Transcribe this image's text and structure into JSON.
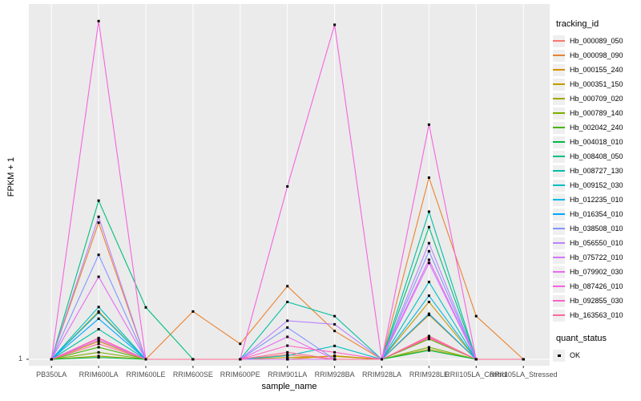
{
  "chart_data": {
    "type": "line",
    "title": "",
    "xlabel": "sample_name",
    "ylabel": "FPKM + 1",
    "y_axis": {
      "scale": "log",
      "ticks": [
        "1"
      ]
    },
    "grid": {
      "vertical_gridlines": true,
      "gridline_color": "#FFFFFF"
    },
    "legend": {
      "position": "right",
      "color_title": "tracking_id",
      "shape_title": "quant_status"
    },
    "marker": {
      "shape": "square",
      "color": "#000000",
      "legend_label": "OK"
    },
    "categories": [
      "PB350LA",
      "RRIM600LA",
      "RRIM600LE",
      "RRIM600SE",
      "RRIM600PE",
      "RRIM901LA",
      "RRIM928BA",
      "RRIM928LA",
      "RRIM928LE",
      "RRII105LA_Control",
      "RRII105LA_Stressed"
    ],
    "series": [
      {
        "name": "Hb_000089_050",
        "color": "#F8766D",
        "values": [
          1,
          1.73,
          1,
          1,
          1,
          1.13,
          1,
          1,
          1.84,
          1,
          1
        ]
      },
      {
        "name": "Hb_000098_090",
        "color": "#EA8331",
        "values": [
          1,
          36,
          1,
          3.5,
          1.5,
          6.8,
          2.1,
          1,
          117,
          3.1,
          1
        ]
      },
      {
        "name": "Hb_000155_240",
        "color": "#D89000",
        "values": [
          1,
          1.6,
          1,
          1,
          1,
          1,
          1.1,
          1,
          3.2,
          1,
          1
        ]
      },
      {
        "name": "Hb_000351_150",
        "color": "#C09B00",
        "values": [
          1,
          3.5,
          1,
          1,
          1,
          1.05,
          1.08,
          1,
          4.5,
          1,
          1
        ]
      },
      {
        "name": "Hb_000709_020",
        "color": "#A3A500",
        "values": [
          1,
          1.09,
          1,
          1,
          1,
          1,
          1,
          1,
          1.3,
          1,
          1
        ]
      },
      {
        "name": "Hb_000789_140",
        "color": "#7CAE00",
        "values": [
          1,
          1.2,
          1,
          1,
          1,
          1,
          1,
          1,
          1.37,
          1,
          1
        ]
      },
      {
        "name": "Hb_002042_240",
        "color": "#49B500",
        "values": [
          1,
          1.37,
          1,
          1,
          1,
          1,
          1,
          1,
          1.7,
          1,
          1
        ]
      },
      {
        "name": "Hb_004018_010",
        "color": "#00BA42",
        "values": [
          1,
          1.05,
          1,
          1,
          1,
          1,
          1,
          1,
          1.26,
          1,
          1
        ]
      },
      {
        "name": "Hb_008408_050",
        "color": "#00BF7D",
        "values": [
          1,
          64,
          3.9,
          1,
          1,
          1,
          1,
          1,
          32,
          1,
          1
        ]
      },
      {
        "name": "Hb_008727_130",
        "color": "#00C1A3",
        "values": [
          1,
          2.2,
          1,
          1,
          1,
          4.5,
          3.1,
          1,
          48,
          1,
          1
        ]
      },
      {
        "name": "Hb_009152_030",
        "color": "#00BFC4",
        "values": [
          1,
          3.94,
          1,
          1,
          1,
          1.1,
          1.42,
          1,
          7.6,
          1,
          1
        ]
      },
      {
        "name": "Hb_012235_010",
        "color": "#00B8E7",
        "values": [
          1,
          3.4,
          1,
          1,
          1,
          1,
          1,
          1,
          5.3,
          1,
          1
        ]
      },
      {
        "name": "Hb_016354_010",
        "color": "#00A9FF",
        "values": [
          1,
          2.9,
          1,
          1,
          1,
          1,
          1,
          1,
          3.3,
          1,
          1
        ]
      },
      {
        "name": "Hb_038508_010",
        "color": "#8494FF",
        "values": [
          1,
          15.5,
          1,
          1,
          1,
          2.3,
          1,
          1,
          17,
          1,
          1
        ]
      },
      {
        "name": "Hb_056550_010",
        "color": "#B983FF",
        "values": [
          1,
          42,
          1,
          1,
          1,
          2.75,
          2.5,
          1,
          21,
          1,
          1
        ]
      },
      {
        "name": "Hb_075722_010",
        "color": "#D575FE",
        "values": [
          1,
          1.66,
          1,
          1,
          1,
          1,
          1,
          1,
          12.5,
          1,
          1
        ]
      },
      {
        "name": "Hb_079902_030",
        "color": "#E76BF3",
        "values": [
          1,
          8.7,
          1,
          1,
          1,
          1.8,
          1,
          1,
          13.6,
          1,
          1
        ]
      },
      {
        "name": "Hb_087426_010",
        "color": "#F763E0",
        "values": [
          1,
          7100,
          1,
          1,
          1,
          93,
          6450,
          1,
          470,
          1,
          1
        ]
      },
      {
        "name": "Hb_092855_030",
        "color": "#FF61C7",
        "values": [
          1,
          1.75,
          1,
          1,
          1,
          1.43,
          1.2,
          1,
          1.8,
          1,
          1
        ]
      },
      {
        "name": "Hb_163563_010",
        "color": "#FF6B96",
        "values": [
          1,
          1.5,
          1,
          1,
          1,
          1.2,
          1,
          1,
          1.75,
          1,
          1
        ]
      }
    ]
  },
  "styles": {
    "panel_bg": "#EBEBEB",
    "gridline_color": "#FFFFFF",
    "tick_label_color": "#4D4D4D",
    "tick_mark_color": "#333333",
    "point_color": "#000000",
    "legend_key_bg": "#EFEFEF",
    "background": "#FFFFFF"
  }
}
